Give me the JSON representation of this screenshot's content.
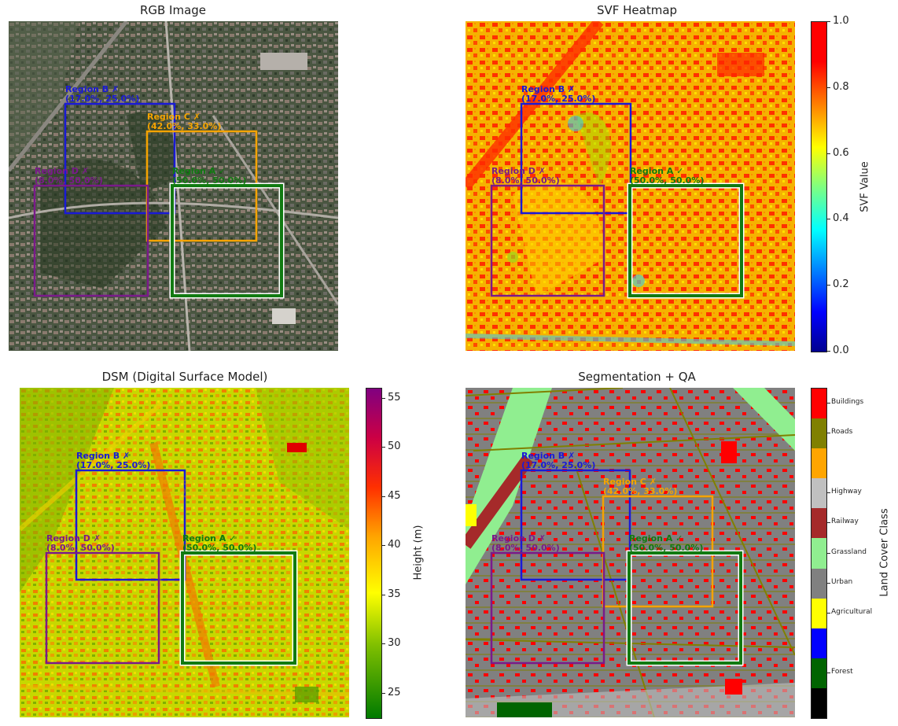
{
  "panels": [
    {
      "id": "rgb",
      "title": "RGB Image"
    },
    {
      "id": "svf",
      "title": "SVF Heatmap"
    },
    {
      "id": "dsm",
      "title": "DSM (Digital Surface Model)"
    },
    {
      "id": "seg",
      "title": "Segmentation + QA"
    }
  ],
  "regions": [
    {
      "id": "A",
      "label": "Region A ✓",
      "coords": "(50.0%, 50.0%)",
      "status": "pass",
      "color": "#117a11"
    },
    {
      "id": "B",
      "label": "Region B ✗",
      "coords": "(17.0%, 25.0%)",
      "status": "fail",
      "color": "#1a1ad6"
    },
    {
      "id": "C",
      "label": "Region C ✗",
      "coords": "(42.0%, 33.0%)",
      "status": "fail",
      "color": "#f5a300"
    },
    {
      "id": "D",
      "label": "Region D ✗",
      "coords": "(8.0%, 50.0%)",
      "status": "fail",
      "color": "#7a1a8a"
    }
  ],
  "chart_data": [
    {
      "type": "heatmap",
      "title": "SVF Heatmap",
      "colorbar": {
        "label": "SVF Value",
        "ticks": [
          "0.0",
          "0.2",
          "0.4",
          "0.6",
          "0.8",
          "1.0"
        ],
        "range": [
          0,
          1
        ],
        "colormap": "jet"
      }
    },
    {
      "type": "heatmap",
      "title": "DSM (Digital Surface Model)",
      "colorbar": {
        "label": "Height (m)",
        "ticks": [
          "25",
          "30",
          "35",
          "40",
          "45",
          "50",
          "55"
        ],
        "range": [
          22.5,
          56
        ],
        "colormap": "RdYlGn_r"
      }
    },
    {
      "type": "heatmap",
      "title": "Segmentation + QA",
      "colorbar": {
        "label": "Land Cover Class",
        "classes": [
          {
            "name": "Buildings",
            "color": "#ff0000"
          },
          {
            "name": "Roads",
            "color": "#808000"
          },
          {
            "name": "",
            "color": "#ffa500"
          },
          {
            "name": "Highway",
            "color": "#c0c0c0"
          },
          {
            "name": "Railway",
            "color": "#a52a2a"
          },
          {
            "name": "Grassland",
            "color": "#90ee90"
          },
          {
            "name": "Urban",
            "color": "#808080"
          },
          {
            "name": "Agricultural",
            "color": "#ffff00"
          },
          {
            "name": "",
            "color": "#0000ff"
          },
          {
            "name": "Forest",
            "color": "#006400"
          },
          {
            "name": "",
            "color": "#000000"
          }
        ]
      }
    }
  ]
}
